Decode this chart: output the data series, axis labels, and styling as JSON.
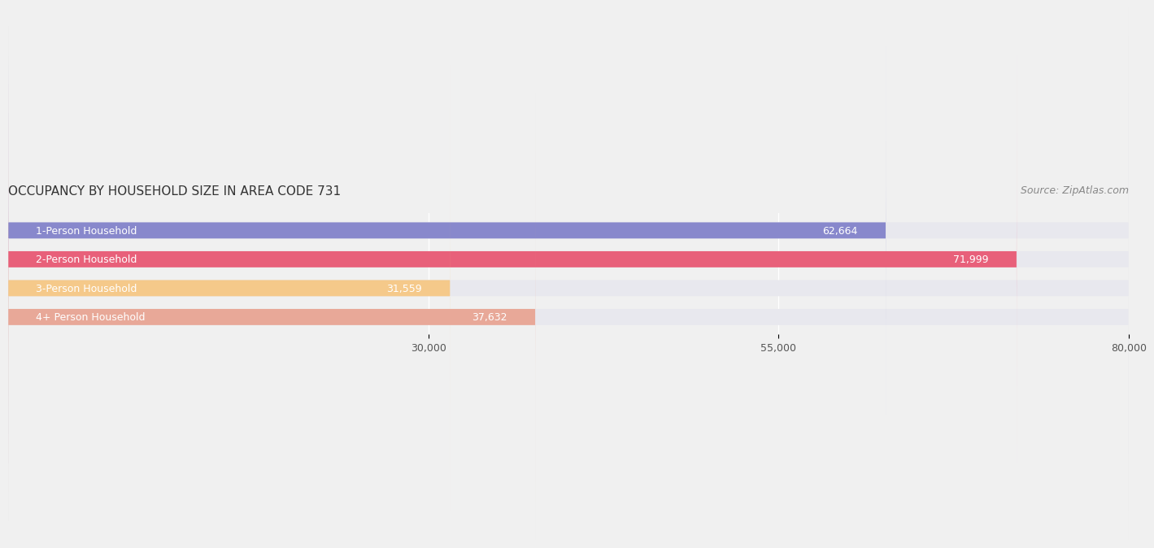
{
  "title": "OCCUPANCY BY HOUSEHOLD SIZE IN AREA CODE 731",
  "source": "Source: ZipAtlas.com",
  "categories": [
    "1-Person Household",
    "2-Person Household",
    "3-Person Household",
    "4+ Person Household"
  ],
  "values": [
    62664,
    71999,
    31559,
    37632
  ],
  "bar_colors": [
    "#8888cc",
    "#e8607a",
    "#f5c98a",
    "#e8a898"
  ],
  "background_color": "#f0f0f0",
  "bar_bg_color": "#e8e8ee",
  "xlim": [
    0,
    80000
  ],
  "xticks": [
    30000,
    55000,
    80000
  ],
  "xtick_labels": [
    "30,000",
    "55,000",
    "80,000"
  ],
  "label_color": "#ffffff",
  "label_outside_color": "#555555",
  "title_fontsize": 11,
  "source_fontsize": 9,
  "tick_fontsize": 9,
  "bar_label_fontsize": 9,
  "bar_height": 0.55
}
